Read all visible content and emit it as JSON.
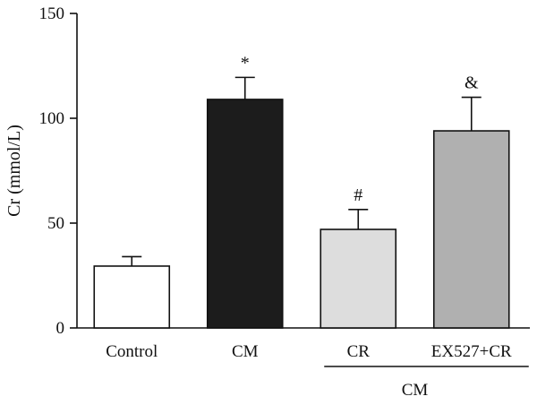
{
  "chart_data": {
    "type": "bar",
    "title": "",
    "xlabel": "",
    "ylabel": "Cr (mmol/L)",
    "ylim": [
      0,
      150
    ],
    "yticks": [
      0,
      50,
      100,
      150
    ],
    "grid": false,
    "categories": [
      "Control",
      "CM",
      "CR",
      "EX527+CR"
    ],
    "values": [
      29.5,
      109,
      47,
      94
    ],
    "errors": [
      4.5,
      10.5,
      9.5,
      16
    ],
    "annotations": [
      "",
      "*",
      "#",
      "&"
    ],
    "colors": [
      "#ffffff",
      "#1c1c1c",
      "#dddddd",
      "#b0b0b0"
    ],
    "group_label": {
      "text": "CM",
      "categories": [
        "CR",
        "EX527+CR"
      ]
    }
  }
}
